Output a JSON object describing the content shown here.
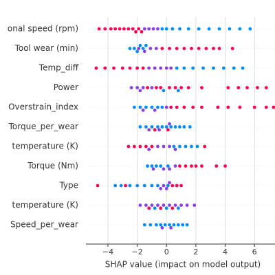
{
  "chart_data": {
    "type": "beeswarm",
    "x_label": "SHAP value (impact on model output)",
    "xlim": [
      -5.5,
      7.4
    ],
    "xticks": [
      {
        "value": -4,
        "label": "−4"
      },
      {
        "value": -2,
        "label": "−2"
      },
      0,
      2,
      4,
      6
    ],
    "grid": true,
    "series": [
      {
        "name": "onal speed (rpm)",
        "values": [
          -4.6,
          -4.2,
          -3.8,
          -3.5,
          -3.2,
          -2.9,
          -2.6,
          -2.3,
          -2.1,
          -1.9,
          -1.7,
          -1.5,
          -1.2,
          -0.9,
          -0.6,
          -0.3,
          0,
          0.4,
          0.9,
          1.5,
          2.2,
          2.9,
          3.6,
          4.3,
          5.0,
          5.7
        ],
        "colors": [
          "#ff0051",
          "#ff0051",
          "#ff0051",
          "#ff0051",
          "#ff0051",
          "#ff0051",
          "#ff0051",
          "#ff0051",
          "#ff0051",
          "#ff0051",
          "#ff0051",
          "#8a3fe6",
          "#8a3fe6",
          "#8a3fe6",
          "#8a3fe6",
          "#008bfb",
          "#008bfb",
          "#008bfb",
          "#008bfb",
          "#008bfb",
          "#008bfb",
          "#008bfb",
          "#008bfb",
          "#008bfb",
          "#008bfb",
          "#008bfb"
        ]
      },
      {
        "name": "Tool wear (min)",
        "values": [
          -2.5,
          -2.2,
          -2.0,
          -1.8,
          -1.6,
          -1.4,
          -1.9,
          -1.5,
          -1.1,
          -0.7,
          -0.3,
          0.2,
          0.7,
          1.2,
          1.7,
          2.2,
          2.7,
          3.2,
          3.6,
          4.5
        ],
        "colors": [
          "#008bfb",
          "#008bfb",
          "#008bfb",
          "#008bfb",
          "#008bfb",
          "#008bfb",
          "#8a3fe6",
          "#8a3fe6",
          "#8a3fe6",
          "#8a3fe6",
          "#ff0051",
          "#ff0051",
          "#ff0051",
          "#ff0051",
          "#ff0051",
          "#ff0051",
          "#ff0051",
          "#ff0051",
          "#ff0051",
          "#ff0051"
        ]
      },
      {
        "name": "Temp_diff",
        "values": [
          -4.8,
          -4.2,
          -3.6,
          -3.0,
          -2.5,
          -2.0,
          -1.6,
          -1.2,
          -0.8,
          -0.4,
          0,
          0.3,
          0.7,
          1.2,
          1.8,
          2.5,
          3.2,
          3.9,
          4.6,
          5.2
        ],
        "colors": [
          "#ff0051",
          "#ff0051",
          "#ff0051",
          "#ff0051",
          "#ff0051",
          "#ff0051",
          "#ff0051",
          "#8a3fe6",
          "#8a3fe6",
          "#8a3fe6",
          "#8a3fe6",
          "#8a3fe6",
          "#008bfb",
          "#008bfb",
          "#008bfb",
          "#008bfb",
          "#008bfb",
          "#008bfb",
          "#008bfb",
          "#008bfb"
        ]
      },
      {
        "name": "Power",
        "values": [
          -2.4,
          -2.0,
          -1.6,
          -1.3,
          -1.0,
          -0.7,
          -0.4,
          -0.2,
          0.2,
          0.6,
          1.0,
          1.5,
          2.4,
          4.2,
          4.9,
          5.5,
          6.2,
          6.8,
          0.8,
          -1.8
        ],
        "colors": [
          "#8a3fe6",
          "#8a3fe6",
          "#8a3fe6",
          "#ff0051",
          "#8a3fe6",
          "#ff0051",
          "#ff0051",
          "#008bfb",
          "#ff0051",
          "#ff0051",
          "#ff0051",
          "#ff0051",
          "#ff0051",
          "#ff0051",
          "#ff0051",
          "#ff0051",
          "#ff0051",
          "#ff0051",
          "#008bfb",
          "#8a3fe6"
        ]
      },
      {
        "name": "Overstrain_index",
        "values": [
          -2.2,
          -1.8,
          -1.4,
          -1.0,
          -0.6,
          -0.3,
          -1.6,
          -0.8,
          0,
          0.3,
          0.7,
          1.2,
          1.8,
          2.4,
          3.5,
          4.2,
          5.0,
          6.0,
          6.8,
          7.3
        ],
        "colors": [
          "#008bfb",
          "#008bfb",
          "#008bfb",
          "#008bfb",
          "#008bfb",
          "#008bfb",
          "#8a3fe6",
          "#8a3fe6",
          "#8a3fe6",
          "#ff0051",
          "#ff0051",
          "#ff0051",
          "#ff0051",
          "#ff0051",
          "#ff0051",
          "#ff0051",
          "#ff0051",
          "#ff0051",
          "#ff0051",
          "#ff0051"
        ]
      },
      {
        "name": "Torque_per_wear",
        "values": [
          -1.8,
          -1.4,
          -1.0,
          -0.6,
          -0.3,
          0,
          0.3,
          0.6,
          0.9,
          1.2,
          1.6,
          -1.2,
          -0.5,
          0.2,
          -0.8,
          0.1
        ],
        "colors": [
          "#008bfb",
          "#008bfb",
          "#008bfb",
          "#008bfb",
          "#008bfb",
          "#008bfb",
          "#008bfb",
          "#008bfb",
          "#008bfb",
          "#008bfb",
          "#008bfb",
          "#8a3fe6",
          "#8a3fe6",
          "#8a3fe6",
          "#ff0051",
          "#ff0051"
        ]
      },
      {
        "name": "temperature (K)",
        "values": [
          -2.6,
          -2.2,
          -1.8,
          -1.4,
          -1.0,
          -0.6,
          -0.2,
          0.2,
          0.5,
          0.9,
          1.3,
          1.7,
          2.1,
          2.6,
          -1.2,
          0.6
        ],
        "colors": [
          "#ff0051",
          "#ff0051",
          "#ff0051",
          "#ff0051",
          "#ff0051",
          "#8a3fe6",
          "#8a3fe6",
          "#8a3fe6",
          "#008bfb",
          "#008bfb",
          "#008bfb",
          "#008bfb",
          "#008bfb",
          "#ff0051",
          "#8a3fe6",
          "#8a3fe6"
        ]
      },
      {
        "name": "Torque (Nm)",
        "values": [
          -1.3,
          -1.0,
          -0.7,
          -0.4,
          -0.9,
          -0.2,
          0.2,
          0.6,
          0.9,
          1.3,
          1.7,
          2.0,
          2.4,
          3.4,
          4.0,
          0.1
        ],
        "colors": [
          "#008bfb",
          "#008bfb",
          "#008bfb",
          "#008bfb",
          "#8a3fe6",
          "#8a3fe6",
          "#8a3fe6",
          "#8a3fe6",
          "#ff0051",
          "#ff0051",
          "#ff0051",
          "#ff0051",
          "#ff0051",
          "#ff0051",
          "#ff0051",
          "#008bfb"
        ]
      },
      {
        "name": "Type",
        "values": [
          -4.7,
          -3.5,
          -3.1,
          -2.8,
          -2.5,
          -2.0,
          -1.5,
          -1.0,
          -0.4,
          -0.2,
          0,
          0.2,
          0.4,
          0.7,
          1.0,
          -0.6,
          0.1
        ],
        "colors": [
          "#ff0051",
          "#008bfb",
          "#008bfb",
          "#ff0051",
          "#008bfb",
          "#008bfb",
          "#008bfb",
          "#008bfb",
          "#8a3fe6",
          "#8a3fe6",
          "#8a3fe6",
          "#8a3fe6",
          "#ff0051",
          "#ff0051",
          "#ff0051",
          "#008bfb",
          "#008bfb"
        ]
      },
      {
        "name": "temperature (K)",
        "values": [
          -1.8,
          -1.4,
          -1.0,
          -0.6,
          -0.2,
          0.2,
          0.6,
          1.0,
          1.4,
          1.9,
          -1.2,
          -0.4,
          0.4,
          -0.8,
          0,
          0.8
        ],
        "colors": [
          "#8a3fe6",
          "#8a3fe6",
          "#8a3fe6",
          "#8a3fe6",
          "#8a3fe6",
          "#8a3fe6",
          "#8a3fe6",
          "#8a3fe6",
          "#8a3fe6",
          "#8a3fe6",
          "#ff0051",
          "#ff0051",
          "#ff0051",
          "#008bfb",
          "#008bfb",
          "#008bfb"
        ]
      },
      {
        "name": "Speed_per_wear",
        "values": [
          -1.5,
          -1.1,
          -0.7,
          -0.4,
          -0.1,
          0.2,
          0.5,
          0.8,
          1.1,
          1.4,
          -0.3,
          0.3
        ],
        "colors": [
          "#008bfb",
          "#008bfb",
          "#008bfb",
          "#008bfb",
          "#008bfb",
          "#008bfb",
          "#008bfb",
          "#008bfb",
          "#008bfb",
          "#008bfb",
          "#8a3fe6",
          "#8a3fe6"
        ]
      }
    ]
  }
}
